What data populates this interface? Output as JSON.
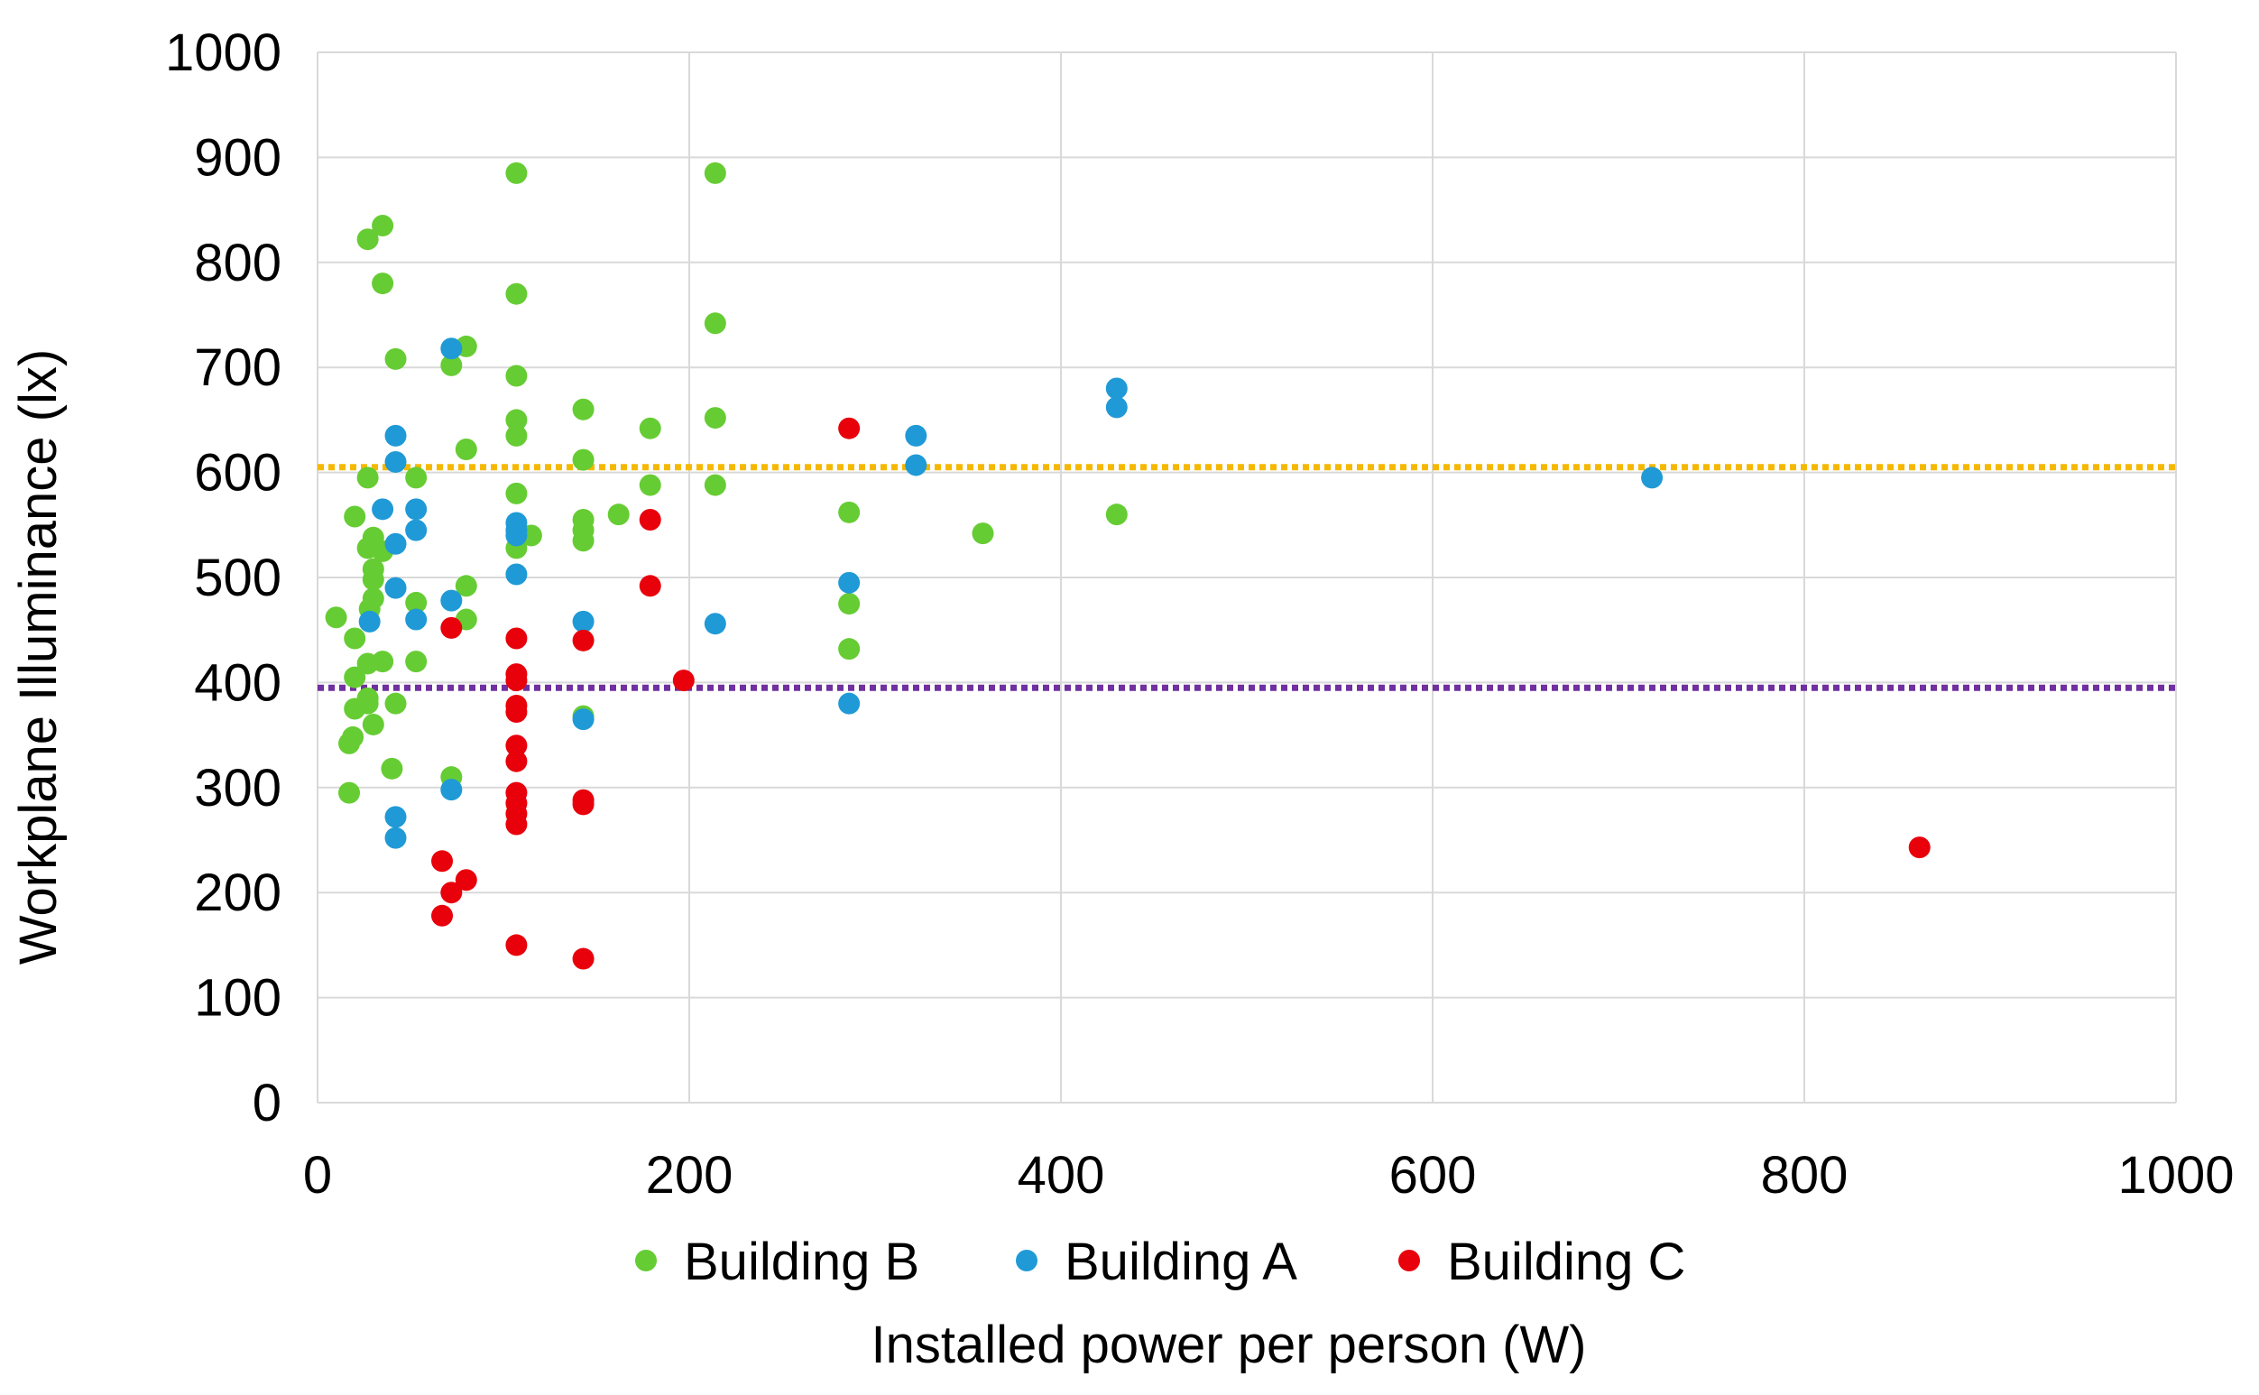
{
  "chart_data": {
    "type": "scatter",
    "xlabel": "Installed power per person (W)",
    "ylabel": "Workplane Illuminance (lx)",
    "xlim": [
      0,
      1000
    ],
    "ylim": [
      0,
      1000
    ],
    "xticks": [
      0,
      200,
      400,
      600,
      800,
      1000
    ],
    "yticks": [
      0,
      100,
      200,
      300,
      400,
      500,
      600,
      700,
      800,
      900,
      1000
    ],
    "grid": true,
    "legend_position": "bottom",
    "reference_lines": [
      {
        "y": 605,
        "color": "#f5b800",
        "style": "dotted"
      },
      {
        "y": 395,
        "color": "#7030a0",
        "style": "dotted"
      }
    ],
    "series": [
      {
        "name": "Building B",
        "color": "#66cc33",
        "points": [
          [
            10,
            462
          ],
          [
            17,
            295
          ],
          [
            17,
            342
          ],
          [
            19,
            348
          ],
          [
            20,
            558
          ],
          [
            20,
            442
          ],
          [
            20,
            405
          ],
          [
            20,
            375
          ],
          [
            27,
            822
          ],
          [
            27,
            595
          ],
          [
            27,
            528
          ],
          [
            27,
            418
          ],
          [
            27,
            385
          ],
          [
            27,
            380
          ],
          [
            28,
            470
          ],
          [
            30,
            538
          ],
          [
            30,
            532
          ],
          [
            30,
            508
          ],
          [
            30,
            498
          ],
          [
            30,
            480
          ],
          [
            30,
            360
          ],
          [
            35,
            835
          ],
          [
            35,
            780
          ],
          [
            35,
            420
          ],
          [
            35,
            525
          ],
          [
            42,
            708
          ],
          [
            42,
            380
          ],
          [
            40,
            318
          ],
          [
            53,
            595
          ],
          [
            53,
            476
          ],
          [
            53,
            420
          ],
          [
            72,
            702
          ],
          [
            72,
            310
          ],
          [
            80,
            720
          ],
          [
            80,
            622
          ],
          [
            80,
            492
          ],
          [
            80,
            460
          ],
          [
            107,
            885
          ],
          [
            107,
            770
          ],
          [
            107,
            692
          ],
          [
            107,
            650
          ],
          [
            107,
            635
          ],
          [
            107,
            580
          ],
          [
            107,
            528
          ],
          [
            115,
            540
          ],
          [
            143,
            660
          ],
          [
            143,
            612
          ],
          [
            143,
            555
          ],
          [
            143,
            545
          ],
          [
            143,
            535
          ],
          [
            143,
            368
          ],
          [
            162,
            560
          ],
          [
            179,
            642
          ],
          [
            179,
            588
          ],
          [
            214,
            885
          ],
          [
            214,
            742
          ],
          [
            214,
            652
          ],
          [
            214,
            588
          ],
          [
            286,
            562
          ],
          [
            286,
            475
          ],
          [
            286,
            432
          ],
          [
            358,
            542
          ],
          [
            430,
            560
          ]
        ]
      },
      {
        "name": "Building A",
        "color": "#1f9ad6",
        "points": [
          [
            28,
            458
          ],
          [
            35,
            565
          ],
          [
            42,
            635
          ],
          [
            42,
            610
          ],
          [
            42,
            532
          ],
          [
            42,
            490
          ],
          [
            42,
            272
          ],
          [
            42,
            252
          ],
          [
            53,
            565
          ],
          [
            53,
            545
          ],
          [
            53,
            460
          ],
          [
            72,
            718
          ],
          [
            72,
            478
          ],
          [
            72,
            298
          ],
          [
            107,
            552
          ],
          [
            107,
            545
          ],
          [
            107,
            540
          ],
          [
            107,
            503
          ],
          [
            143,
            458
          ],
          [
            143,
            365
          ],
          [
            214,
            456
          ],
          [
            286,
            495
          ],
          [
            286,
            380
          ],
          [
            322,
            635
          ],
          [
            322,
            607
          ],
          [
            430,
            680
          ],
          [
            430,
            662
          ],
          [
            718,
            595
          ]
        ]
      },
      {
        "name": "Building C",
        "color": "#e8000b",
        "points": [
          [
            67,
            230
          ],
          [
            67,
            178
          ],
          [
            72,
            452
          ],
          [
            72,
            200
          ],
          [
            80,
            212
          ],
          [
            107,
            442
          ],
          [
            107,
            408
          ],
          [
            107,
            402
          ],
          [
            107,
            378
          ],
          [
            107,
            372
          ],
          [
            107,
            340
          ],
          [
            107,
            325
          ],
          [
            107,
            295
          ],
          [
            107,
            285
          ],
          [
            107,
            275
          ],
          [
            107,
            265
          ],
          [
            107,
            150
          ],
          [
            143,
            440
          ],
          [
            143,
            288
          ],
          [
            143,
            284
          ],
          [
            143,
            137
          ],
          [
            179,
            555
          ],
          [
            179,
            492
          ],
          [
            197,
            402
          ],
          [
            286,
            642
          ],
          [
            862,
            243
          ]
        ]
      }
    ]
  }
}
